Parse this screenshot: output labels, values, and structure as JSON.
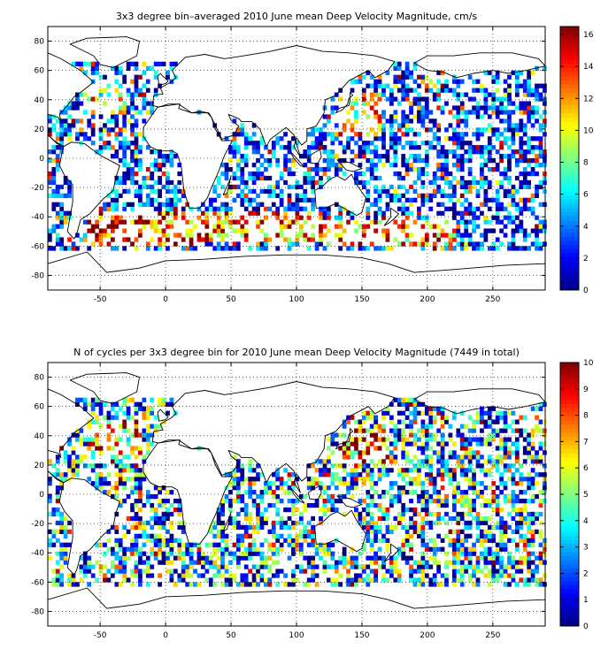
{
  "chart_data": [
    {
      "type": "heatmap",
      "title": "3x3 degree bin–averaged 2010 June mean Deep Velocity Magnitude, cm/s",
      "xlabel": "",
      "ylabel": "",
      "xlim": [
        -90,
        290
      ],
      "ylim": [
        -90,
        90
      ],
      "bin_size_deg": 3,
      "x_ticks": [
        -50,
        0,
        50,
        100,
        150,
        200,
        250
      ],
      "y_ticks": [
        -80,
        -60,
        -40,
        -20,
        0,
        20,
        40,
        60,
        80
      ],
      "grid": true,
      "colormap": "jet",
      "colorbar": {
        "min": 0,
        "max": 16.5,
        "ticks": [
          0,
          2,
          4,
          6,
          8,
          10,
          12,
          14,
          16
        ],
        "placement": "right"
      },
      "regions": [
        {
          "lon": [
            -60,
            30
          ],
          "lat": [
            -60,
            -36
          ],
          "value": 14,
          "density": 0.45
        },
        {
          "lon": [
            20,
            120
          ],
          "lat": [
            -58,
            -38
          ],
          "value": 13,
          "density": 0.45
        },
        {
          "lon": [
            120,
            220
          ],
          "lat": [
            -62,
            -42
          ],
          "value": 12,
          "density": 0.35
        },
        {
          "lon": [
            -60,
            -30
          ],
          "lat": [
            30,
            50
          ],
          "value": 10,
          "density": 0.3
        },
        {
          "lon": [
            130,
            165
          ],
          "lat": [
            15,
            45
          ],
          "value": 11,
          "density": 0.35
        },
        {
          "lon": [
            -90,
            290
          ],
          "lat": [
            -65,
            65
          ],
          "value": 3,
          "density": 0.5
        }
      ]
    },
    {
      "type": "heatmap",
      "title": "N of cycles per 3x3 degree bin for 2010 June mean Deep Velocity Magnitude (7449 in total)",
      "xlabel": "",
      "ylabel": "",
      "xlim": [
        -90,
        290
      ],
      "ylim": [
        -90,
        90
      ],
      "bin_size_deg": 3,
      "x_ticks": [
        -50,
        0,
        50,
        100,
        150,
        200,
        250
      ],
      "y_ticks": [
        -80,
        -60,
        -40,
        -20,
        0,
        20,
        40,
        60,
        80
      ],
      "grid": true,
      "colormap": "jet",
      "colorbar": {
        "min": 0,
        "max": 10,
        "ticks": [
          0,
          1,
          2,
          3,
          4,
          5,
          6,
          7,
          8,
          9,
          10
        ],
        "placement": "right"
      },
      "regions": [
        {
          "lon": [
            130,
            170
          ],
          "lat": [
            20,
            45
          ],
          "value": 9,
          "density": 0.45
        },
        {
          "lon": [
            -60,
            -20
          ],
          "lat": [
            20,
            50
          ],
          "value": 7,
          "density": 0.35
        },
        {
          "lon": [
            -90,
            290
          ],
          "lat": [
            -65,
            65
          ],
          "value": 3,
          "density": 0.55
        }
      ]
    }
  ]
}
